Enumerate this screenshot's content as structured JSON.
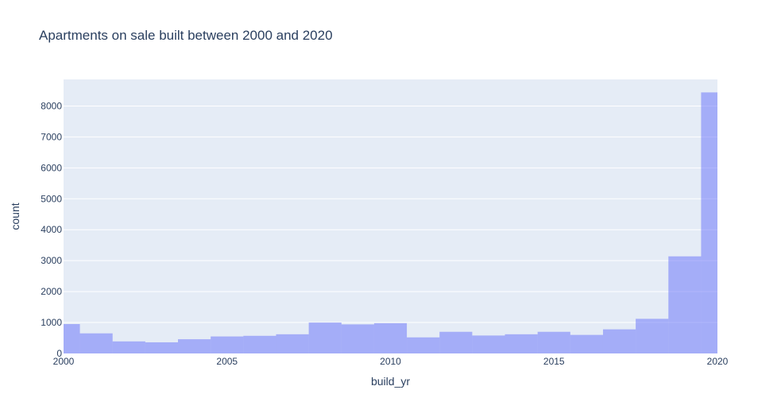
{
  "chart_data": {
    "type": "bar",
    "title": "Apartments on sale built between 2000 and 2020",
    "xlabel": "build_yr",
    "ylabel": "count",
    "xlim": [
      2000,
      2020
    ],
    "ylim": [
      0,
      8860
    ],
    "x_ticks": [
      "2000",
      "2005",
      "2010",
      "2015",
      "2020"
    ],
    "y_ticks": [
      "0",
      "1000",
      "2000",
      "3000",
      "4000",
      "5000",
      "6000",
      "7000",
      "8000"
    ],
    "grid": true,
    "legend": "none",
    "bar_color": "#636efa",
    "bar_opacity": 0.5,
    "plot_background": "#e5ecf6",
    "bin_width": 1,
    "bins": [
      {
        "x0": 2000.0,
        "x1": 2000.5,
        "count": 950
      },
      {
        "x0": 2000.5,
        "x1": 2001.5,
        "count": 650
      },
      {
        "x0": 2001.5,
        "x1": 2002.5,
        "count": 390
      },
      {
        "x0": 2002.5,
        "x1": 2003.5,
        "count": 360
      },
      {
        "x0": 2003.5,
        "x1": 2004.5,
        "count": 460
      },
      {
        "x0": 2004.5,
        "x1": 2005.5,
        "count": 550
      },
      {
        "x0": 2005.5,
        "x1": 2006.5,
        "count": 570
      },
      {
        "x0": 2006.5,
        "x1": 2007.5,
        "count": 620
      },
      {
        "x0": 2007.5,
        "x1": 2008.5,
        "count": 1000
      },
      {
        "x0": 2008.5,
        "x1": 2009.5,
        "count": 940
      },
      {
        "x0": 2009.5,
        "x1": 2010.5,
        "count": 980
      },
      {
        "x0": 2010.5,
        "x1": 2011.5,
        "count": 520
      },
      {
        "x0": 2011.5,
        "x1": 2012.5,
        "count": 700
      },
      {
        "x0": 2012.5,
        "x1": 2013.5,
        "count": 580
      },
      {
        "x0": 2013.5,
        "x1": 2014.5,
        "count": 620
      },
      {
        "x0": 2014.5,
        "x1": 2015.5,
        "count": 700
      },
      {
        "x0": 2015.5,
        "x1": 2016.5,
        "count": 600
      },
      {
        "x0": 2016.5,
        "x1": 2017.5,
        "count": 780
      },
      {
        "x0": 2017.5,
        "x1": 2018.5,
        "count": 1120
      },
      {
        "x0": 2018.5,
        "x1": 2019.5,
        "count": 3140
      },
      {
        "x0": 2019.5,
        "x1": 2020.0,
        "count": 8440
      }
    ]
  }
}
